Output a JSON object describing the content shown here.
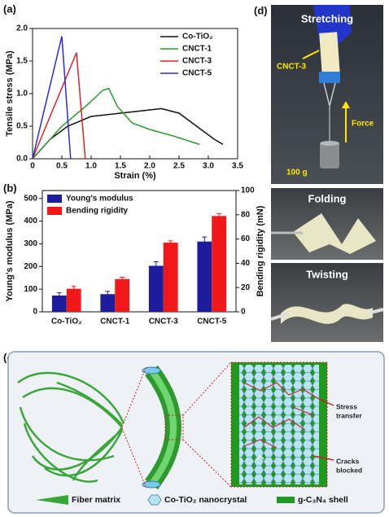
{
  "panel_labels": [
    "(a)",
    "(b)",
    "(c)",
    "(d)"
  ],
  "chart_data": [
    {
      "type": "line",
      "xlabel": "Strain (%)",
      "ylabel": "Tensile stress (MPa)",
      "xlim": [
        0,
        3.5
      ],
      "xticks": [
        0,
        0.5,
        {
          "value": 1,
          "label": "1.0"
        },
        1.5,
        {
          "value": 2,
          "label": "2.0"
        },
        2.5,
        {
          "value": 3,
          "label": "3.0"
        },
        3.5
      ],
      "ylim": [
        0,
        2.0
      ],
      "yticks": [
        {
          "value": 0,
          "label": "0.0"
        },
        0.5,
        {
          "value": 1,
          "label": "1.0"
        },
        1.5,
        {
          "value": 2,
          "label": "2.0"
        }
      ],
      "legend": "upper right",
      "series": [
        {
          "name": "Co-TiO₂",
          "color": "#111111",
          "x": [
            0,
            0.3,
            0.6,
            1.0,
            1.5,
            2.0,
            2.2,
            2.5,
            2.8,
            3.1,
            3.25
          ],
          "values": [
            0,
            0.3,
            0.5,
            0.65,
            0.7,
            0.75,
            0.77,
            0.7,
            0.5,
            0.3,
            0.22
          ]
        },
        {
          "name": "CNCT-1",
          "color": "#2e9a2e",
          "x": [
            0,
            0.5,
            0.9,
            1.2,
            1.3,
            1.45,
            1.7,
            2.0,
            2.4,
            2.85
          ],
          "values": [
            0,
            0.5,
            0.8,
            1.05,
            1.08,
            0.8,
            0.55,
            0.45,
            0.35,
            0.22
          ]
        },
        {
          "name": "CNCT-3",
          "color": "#e02424",
          "x": [
            0,
            0.75,
            0.9
          ],
          "values": [
            0,
            1.63,
            0
          ]
        },
        {
          "name": "CNCT-5",
          "color": "#2a2ae0",
          "x": [
            0,
            0.5,
            0.65
          ],
          "values": [
            0,
            1.88,
            0
          ]
        }
      ]
    },
    {
      "type": "bar",
      "ylabel": "Young's modulus (MPa)",
      "y2label": "Bending rigidity (mN)",
      "categories": [
        "Co-TiO₂",
        "CNCT-1",
        "CNCT-3",
        "CNCT-5"
      ],
      "ylim": [
        0,
        535
      ],
      "yticks": [
        0,
        100,
        200,
        300,
        400,
        500
      ],
      "y2lim": [
        0,
        100
      ],
      "y2ticks": [
        0,
        20,
        40,
        60,
        80,
        100
      ],
      "legend": "upper left",
      "series": [
        {
          "name": "Young's modulus",
          "color": "#1c1c9c",
          "values": [
            72,
            78,
            203,
            310
          ],
          "errors": [
            12,
            12,
            18,
            20
          ]
        },
        {
          "name": "Bending rigidity",
          "color": "#f01818",
          "axis": "y2",
          "values": [
            19,
            27,
            57,
            79
          ],
          "errors": [
            2,
            1.5,
            1.5,
            2
          ]
        }
      ]
    }
  ],
  "diagram": {
    "stress_transfer": [
      "Stress",
      "transfer"
    ],
    "cracks_blocked": [
      "Cracks",
      "blocked"
    ],
    "legend": [
      "Fiber matrix",
      "Co-TiO₂ nanocrystal",
      "g-C₃N₄ shell"
    ]
  },
  "photos": [
    {
      "label": "Stretching",
      "annotations": [
        "CNCT-3",
        "Force",
        "100 g"
      ]
    },
    {
      "label": "Folding"
    },
    {
      "label": "Twisting"
    }
  ]
}
